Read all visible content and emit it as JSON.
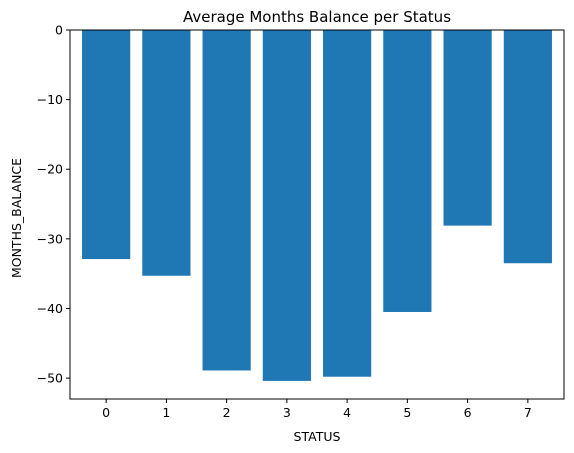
{
  "chart_data": {
    "type": "bar",
    "title": "Average Months Balance per Status",
    "xlabel": "STATUS",
    "ylabel": "MONTHS_BALANCE",
    "categories": [
      "0",
      "1",
      "2",
      "3",
      "4",
      "5",
      "6",
      "7"
    ],
    "values": [
      -32.9,
      -35.3,
      -48.9,
      -50.4,
      -49.8,
      -40.5,
      -28.1,
      -33.5
    ],
    "ylim": [
      -53,
      0
    ],
    "yticks": [
      0,
      -10,
      -20,
      -30,
      -40,
      -50
    ],
    "ytick_labels": [
      "0",
      "−10",
      "−20",
      "−30",
      "−40",
      "−50"
    ],
    "bar_color": "#1f77b4",
    "grid": false,
    "legend": "none"
  }
}
